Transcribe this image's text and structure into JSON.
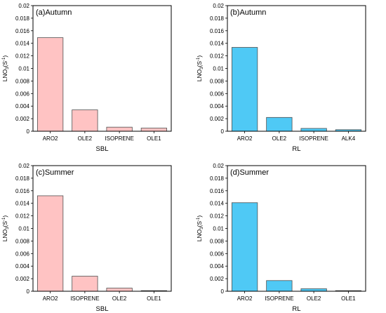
{
  "chart_data": [
    {
      "type": "bar",
      "title": "(a)Autumn",
      "xlabel": "SBL",
      "ylabel": {
        "main": "LNO",
        "sub": "3",
        "open": "(S",
        "sup": "-1",
        "close": ")"
      },
      "ylim": [
        0,
        0.02
      ],
      "yticks": [
        "0",
        "0.002",
        "0.004",
        "0.006",
        "0.008",
        "0.01",
        "0.012",
        "0.014",
        "0.016",
        "0.018",
        "0.02"
      ],
      "categories": [
        "ARO2",
        "OLE2",
        "ISOPRENE",
        "OLE1"
      ],
      "values": [
        0.0149,
        0.0034,
        0.00065,
        0.0005
      ],
      "color": "#ffc3c3",
      "edge": "#505050"
    },
    {
      "type": "bar",
      "title": "(b)Autumn",
      "xlabel": "RL",
      "ylabel": {
        "main": "LNO",
        "sub": "3",
        "open": "(S",
        "sup": "-1",
        "close": ")"
      },
      "ylim": [
        0,
        0.02
      ],
      "yticks": [
        "0",
        "0.002",
        "0.004",
        "0.006",
        "0.008",
        "0.01",
        "0.012",
        "0.014",
        "0.016",
        "0.018",
        "0.02"
      ],
      "categories": [
        "ARO2",
        "OLE2",
        "ISOPRENE",
        "ALK4"
      ],
      "values": [
        0.01335,
        0.0022,
        0.00045,
        0.00025
      ],
      "color": "#4fc9f5",
      "edge": "#505050"
    },
    {
      "type": "bar",
      "title": "(c)Summer",
      "xlabel": "SBL",
      "ylabel": {
        "main": "LNO",
        "sub": "3",
        "open": "(S",
        "sup": "-1",
        "close": ")"
      },
      "ylim": [
        0,
        0.02
      ],
      "yticks": [
        "0",
        "0.002",
        "0.004",
        "0.006",
        "0.008",
        "0.01",
        "0.012",
        "0.014",
        "0.016",
        "0.018",
        "0.02"
      ],
      "categories": [
        "ARO2",
        "ISOPRENE",
        "OLE2",
        "OLE1"
      ],
      "values": [
        0.0152,
        0.0024,
        0.0005,
        0.0001
      ],
      "color": "#ffc3c3",
      "edge": "#505050"
    },
    {
      "type": "bar",
      "title": "(d)Summer",
      "xlabel": "RL",
      "ylabel": {
        "main": "LNO",
        "sub": "3",
        "open": "(S",
        "sup": "-1",
        "close": ")"
      },
      "ylim": [
        0,
        0.02
      ],
      "yticks": [
        "0",
        "0.002",
        "0.004",
        "0.006",
        "0.008",
        "0.01",
        "0.012",
        "0.014",
        "0.016",
        "0.018",
        "0.02"
      ],
      "categories": [
        "ARO2",
        "ISOPRENE",
        "OLE2",
        "OLE1"
      ],
      "values": [
        0.0141,
        0.0017,
        0.0004,
        0.0001
      ],
      "color": "#4fc9f5",
      "edge": "#505050"
    }
  ]
}
